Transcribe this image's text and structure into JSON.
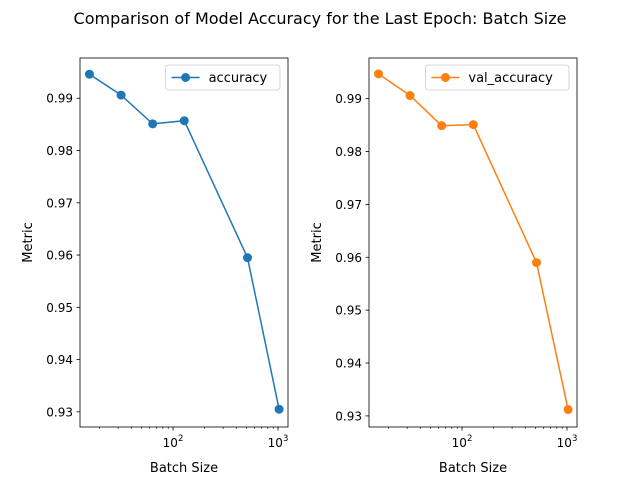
{
  "title": "Comparison of Model Accuracy for the Last Epoch: Batch Size",
  "chart_data": [
    {
      "type": "line",
      "xscale": "log",
      "x": [
        16,
        32,
        64,
        128,
        512,
        1024
      ],
      "series": [
        {
          "name": "accuracy",
          "color": "#1f77b4",
          "values": [
            0.9946,
            0.9906,
            0.9851,
            0.9857,
            0.9595,
            0.9305
          ]
        }
      ],
      "xlabel": "Batch Size",
      "ylabel": "Metric",
      "xlim": [
        13,
        1245
      ],
      "ylim": [
        0.9271,
        0.9977
      ],
      "yticks": [
        0.93,
        0.94,
        0.95,
        0.96,
        0.97,
        0.98,
        0.99
      ],
      "ytick_labels": [
        "0.93",
        "0.94",
        "0.95",
        "0.96",
        "0.97",
        "0.98",
        "0.99"
      ],
      "xticks": [
        100,
        1000
      ],
      "xtick_labels": [
        [
          "10",
          "2"
        ],
        [
          "10",
          "3"
        ]
      ],
      "legend": "top-right"
    },
    {
      "type": "line",
      "xscale": "log",
      "x": [
        16,
        32,
        64,
        128,
        512,
        1024
      ],
      "series": [
        {
          "name": "val_accuracy",
          "color": "#ff7f0e",
          "values": [
            0.9947,
            0.9906,
            0.9849,
            0.9851,
            0.959,
            0.9312
          ]
        }
      ],
      "xlabel": "Batch Size",
      "ylabel": "Metric",
      "xlim": [
        13,
        1245
      ],
      "ylim": [
        0.9279,
        0.9977
      ],
      "yticks": [
        0.93,
        0.94,
        0.95,
        0.96,
        0.97,
        0.98,
        0.99
      ],
      "ytick_labels": [
        "0.93",
        "0.94",
        "0.95",
        "0.96",
        "0.97",
        "0.98",
        "0.99"
      ],
      "xticks": [
        100,
        1000
      ],
      "xtick_labels": [
        [
          "10",
          "2"
        ],
        [
          "10",
          "3"
        ]
      ],
      "legend": "top-right"
    }
  ]
}
